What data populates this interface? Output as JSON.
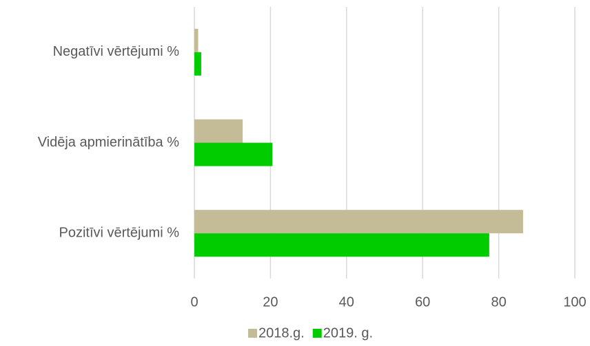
{
  "chart_data": {
    "type": "hbar",
    "categories": [
      "Negatīvi vērtējumi %",
      "Vidēja apmierinātība %",
      "Pozitīvi vērtējumi %"
    ],
    "series": [
      {
        "name": "2018.g.",
        "color": "#c4bc96",
        "values": [
          1,
          12.7,
          86.4
        ]
      },
      {
        "name": "2019. g.",
        "color": "#00cc00",
        "values": [
          1.8,
          20.5,
          77.5
        ]
      }
    ],
    "xlim": [
      0,
      100
    ],
    "xticks": [
      0,
      20,
      40,
      60,
      80,
      100
    ],
    "grid": true,
    "legend": "bottom"
  }
}
